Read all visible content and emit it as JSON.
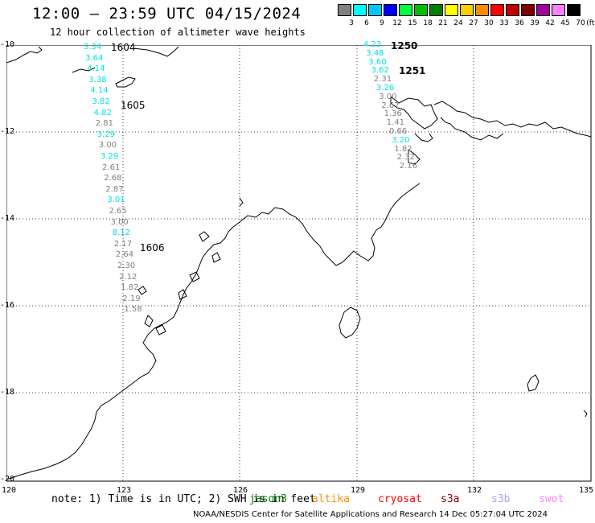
{
  "header": {
    "title": "12:00 – 23:59 UTC 04/15/2024",
    "subtitle": "12 hour collection of altimeter wave heights"
  },
  "legend": {
    "unit": "(ft)",
    "items": [
      {
        "label": "3",
        "color": "#808080"
      },
      {
        "label": "6",
        "color": "#00ffff"
      },
      {
        "label": "9",
        "color": "#00c8ff"
      },
      {
        "label": "12",
        "color": "#0000ff"
      },
      {
        "label": "15",
        "color": "#00ff40"
      },
      {
        "label": "18",
        "color": "#00c000"
      },
      {
        "label": "21",
        "color": "#008000"
      },
      {
        "label": "24",
        "color": "#ffff00"
      },
      {
        "label": "27",
        "color": "#ffcc00"
      },
      {
        "label": "30",
        "color": "#ff8c00"
      },
      {
        "label": "33",
        "color": "#ff0000"
      },
      {
        "label": "36",
        "color": "#c00000"
      },
      {
        "label": "39",
        "color": "#800000"
      },
      {
        "label": "42",
        "color": "#a000a0"
      },
      {
        "label": "45",
        "color": "#ff80ff"
      },
      {
        "label": "70",
        "color": "#000000"
      }
    ]
  },
  "axes": {
    "lat_labels": [
      "-10",
      "-12",
      "-14",
      "-16",
      "-18",
      "-20"
    ],
    "lon_labels": [
      "120",
      "123",
      "126",
      "129",
      "132",
      "135"
    ]
  },
  "tracks": {
    "west_pass_labels": [
      "1604",
      "1605",
      "1606"
    ],
    "east_pass_labels": [
      "1250",
      "1251"
    ],
    "west_values": [
      {
        "v": "3.34",
        "c": "#00e0e0"
      },
      {
        "v": "3.64",
        "c": "#00e0e0"
      },
      {
        "v": "4.14",
        "c": "#00e0e0"
      },
      {
        "v": "3.38",
        "c": "#00e0e0"
      },
      {
        "v": "4.14",
        "c": "#00e0e0"
      },
      {
        "v": "3.82",
        "c": "#00e0e0"
      },
      {
        "v": "4.82",
        "c": "#00e0e0"
      },
      {
        "v": "2.81",
        "c": "#808080"
      },
      {
        "v": "3.29",
        "c": "#00e0e0"
      },
      {
        "v": "3.00",
        "c": "#808080"
      },
      {
        "v": "3.29",
        "c": "#00e0e0"
      },
      {
        "v": "2.61",
        "c": "#808080"
      },
      {
        "v": "2.68",
        "c": "#808080"
      },
      {
        "v": "2.87",
        "c": "#808080"
      },
      {
        "v": "3.01",
        "c": "#00e0e0"
      },
      {
        "v": "2.65",
        "c": "#808080"
      },
      {
        "v": "3.00",
        "c": "#808080"
      },
      {
        "v": "8.12",
        "c": "#00c8ff"
      },
      {
        "v": "2.17",
        "c": "#808080"
      },
      {
        "v": "2.64",
        "c": "#808080"
      },
      {
        "v": "2.30",
        "c": "#808080"
      },
      {
        "v": "2.12",
        "c": "#808080"
      },
      {
        "v": "1.82",
        "c": "#808080"
      },
      {
        "v": "2.19",
        "c": "#808080"
      },
      {
        "v": "1.58",
        "c": "#808080"
      }
    ],
    "east_values": [
      {
        "v": "4.23",
        "c": "#00e0e0"
      },
      {
        "v": "3.48",
        "c": "#00e0e0"
      },
      {
        "v": "3.60",
        "c": "#00e0e0"
      },
      {
        "v": "3.62",
        "c": "#00e0e0"
      },
      {
        "v": "2.31",
        "c": "#808080"
      },
      {
        "v": "3.26",
        "c": "#00e0e0"
      },
      {
        "v": "3.00",
        "c": "#808080"
      },
      {
        "v": "2.67",
        "c": "#808080"
      },
      {
        "v": "1.36",
        "c": "#808080"
      },
      {
        "v": "1.41",
        "c": "#808080"
      },
      {
        "v": "0.66",
        "c": "#808080"
      },
      {
        "v": "3.20",
        "c": "#00e0e0"
      },
      {
        "v": "1.82",
        "c": "#808080"
      },
      {
        "v": "2.32",
        "c": "#808080"
      },
      {
        "v": "2.16",
        "c": "#808080"
      }
    ]
  },
  "footer": {
    "note": "note: 1) Time is in UTC; 2) SWH is in feet",
    "satellites": [
      {
        "name": "jason3",
        "color": "#008000"
      },
      {
        "name": "altika",
        "color": "#ff8c00"
      },
      {
        "name": "cryosat",
        "color": "#ff0000"
      },
      {
        "name": "s3a",
        "color": "#800000"
      },
      {
        "name": "s3b",
        "color": "#b0a0e8"
      },
      {
        "name": "swot",
        "color": "#ff80ff"
      }
    ],
    "credit": "NOAA/NESDIS Center for Satellite Applications and Research   14 Dec 05:27:04 UTC 2024"
  },
  "colors": {
    "west_pass": "#ff80d0",
    "east_pass": "#008000",
    "coast": "#000000"
  }
}
